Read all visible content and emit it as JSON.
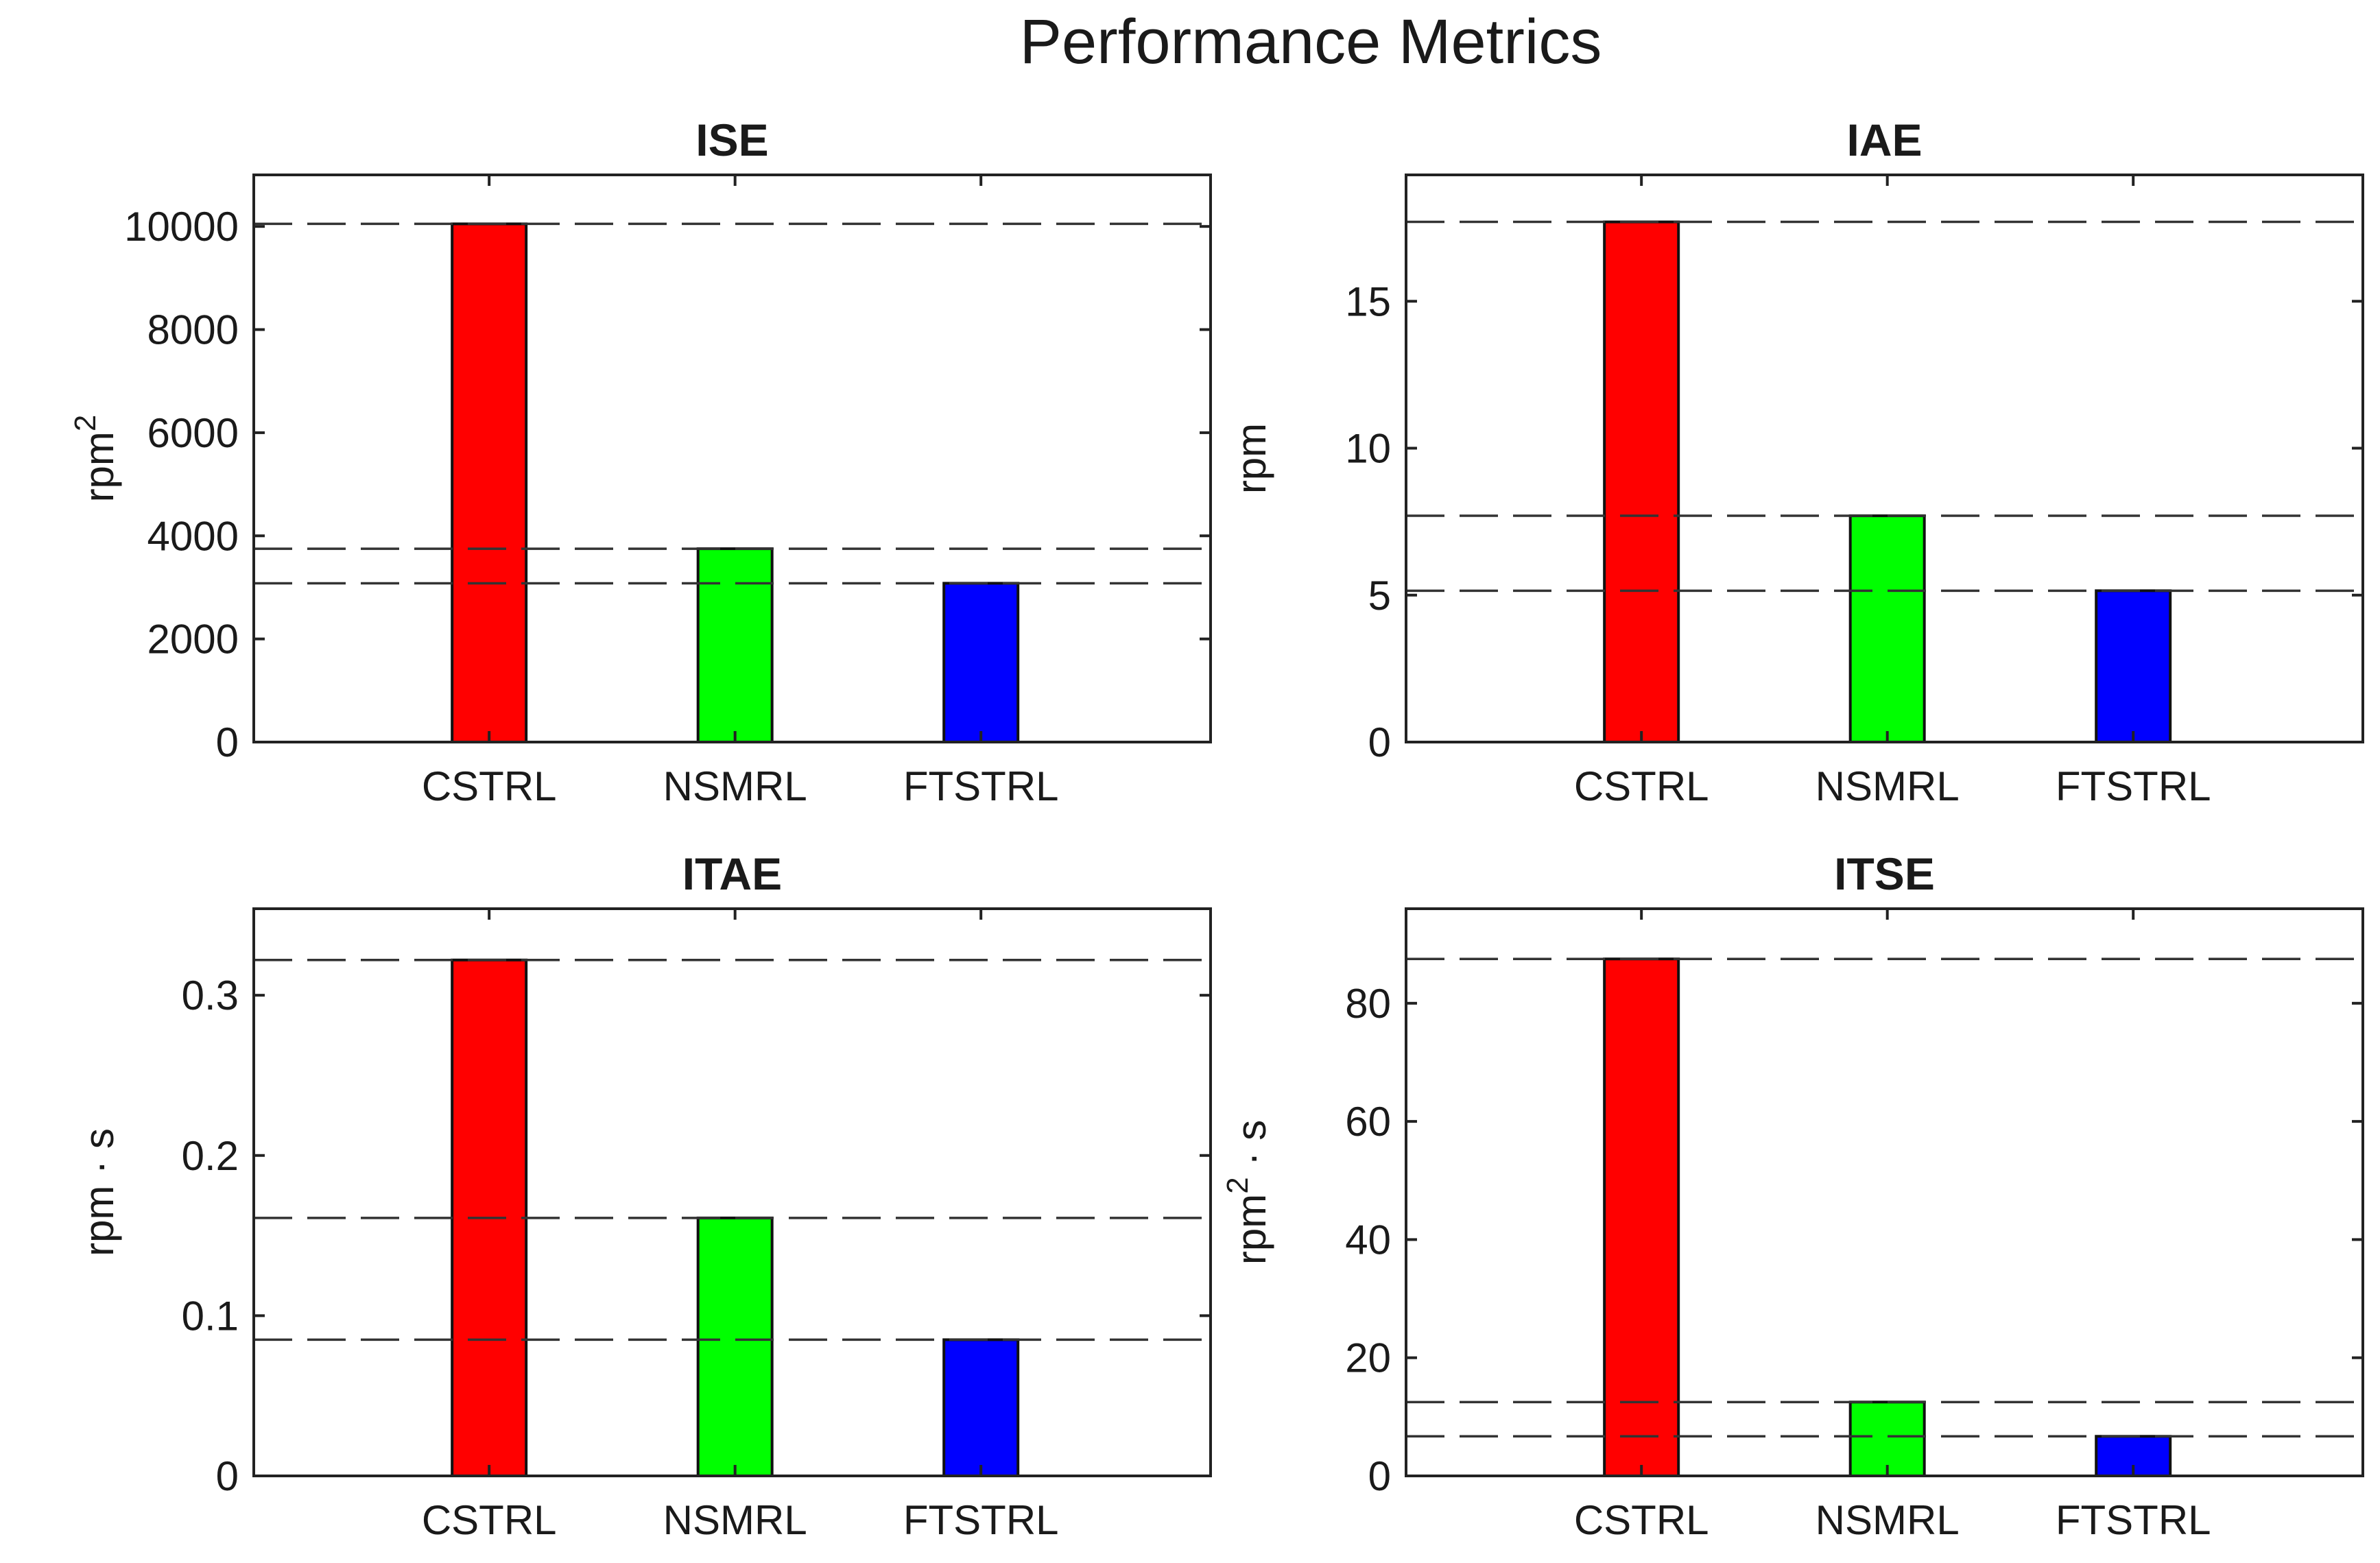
{
  "figure": {
    "title": "Performance Metrics"
  },
  "chart_data": [
    {
      "type": "bar",
      "title": "ISE",
      "ylabel": "rpm",
      "ylabel_sup": "2",
      "ylabel_tail": "",
      "categories": [
        "CSTRL",
        "NSMRL",
        "FTSTRL"
      ],
      "values": [
        10050,
        3750,
        3080
      ],
      "colors": [
        "#ff0000",
        "#00ff00",
        "#0000ff"
      ],
      "ylim": [
        0,
        11000
      ],
      "yticks": [
        0,
        2000,
        4000,
        6000,
        8000,
        10000
      ],
      "ytick_labels": [
        "0",
        "2000",
        "4000",
        "6000",
        "8000",
        "10000"
      ],
      "reference_lines": "dashed at each bar value"
    },
    {
      "type": "bar",
      "title": "IAE",
      "ylabel": "rpm",
      "ylabel_sup": "",
      "ylabel_tail": "",
      "categories": [
        "CSTRL",
        "NSMRL",
        "FTSTRL"
      ],
      "values": [
        17.7,
        7.7,
        5.15
      ],
      "colors": [
        "#ff0000",
        "#00ff00",
        "#0000ff"
      ],
      "ylim": [
        0,
        19.3
      ],
      "yticks": [
        0,
        5,
        10,
        15
      ],
      "ytick_labels": [
        "0",
        "5",
        "10",
        "15"
      ],
      "reference_lines": "dashed at each bar value"
    },
    {
      "type": "bar",
      "title": "ITAE",
      "ylabel": "rpm · s",
      "ylabel_sup": "",
      "ylabel_tail": "",
      "categories": [
        "CSTRL",
        "NSMRL",
        "FTSTRL"
      ],
      "values": [
        0.322,
        0.161,
        0.085
      ],
      "colors": [
        "#ff0000",
        "#00ff00",
        "#0000ff"
      ],
      "ylim": [
        0,
        0.354
      ],
      "yticks": [
        0,
        0.1,
        0.2,
        0.3
      ],
      "ytick_labels": [
        "0",
        "0.1",
        "0.2",
        "0.3"
      ],
      "reference_lines": "dashed at each bar value"
    },
    {
      "type": "bar",
      "title": "ITSE",
      "ylabel": "rpm",
      "ylabel_sup": "2",
      "ylabel_tail": " · s",
      "categories": [
        "CSTRL",
        "NSMRL",
        "FTSTRL"
      ],
      "values": [
        87.5,
        12.5,
        6.7
      ],
      "colors": [
        "#ff0000",
        "#00ff00",
        "#0000ff"
      ],
      "ylim": [
        0,
        96
      ],
      "yticks": [
        0,
        20,
        40,
        60,
        80
      ],
      "ytick_labels": [
        "0",
        "20",
        "40",
        "60",
        "80"
      ],
      "reference_lines": "dashed at each bar value"
    }
  ]
}
